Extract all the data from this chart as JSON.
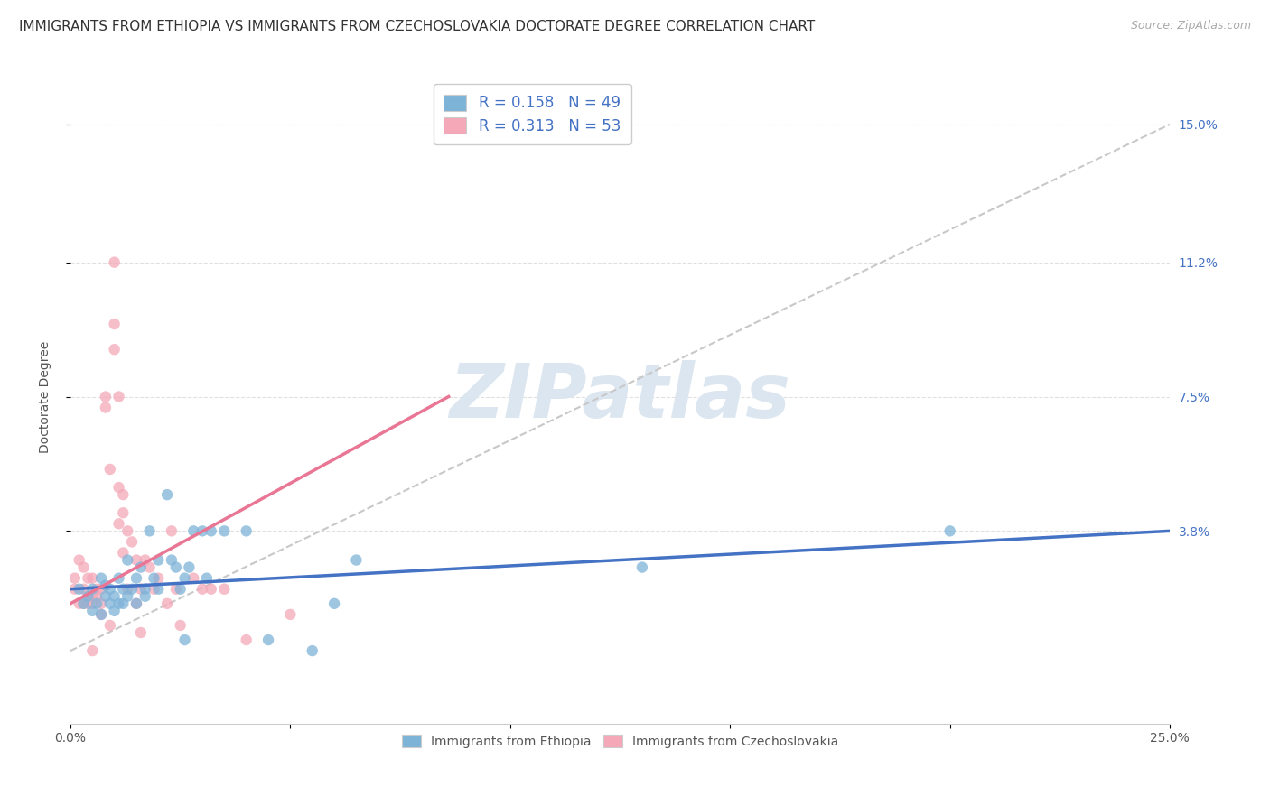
{
  "title": "IMMIGRANTS FROM ETHIOPIA VS IMMIGRANTS FROM CZECHOSLOVAKIA DOCTORATE DEGREE CORRELATION CHART",
  "source": "Source: ZipAtlas.com",
  "ylabel": "Doctorate Degree",
  "ylabel_ticks": [
    "3.8%",
    "7.5%",
    "11.2%",
    "15.0%"
  ],
  "ylabel_tick_values": [
    0.038,
    0.075,
    0.112,
    0.15
  ],
  "xlim": [
    0.0,
    0.25
  ],
  "ylim": [
    -0.015,
    0.165
  ],
  "ethiopia_scatter": [
    [
      0.002,
      0.022
    ],
    [
      0.003,
      0.018
    ],
    [
      0.004,
      0.02
    ],
    [
      0.005,
      0.016
    ],
    [
      0.005,
      0.022
    ],
    [
      0.006,
      0.018
    ],
    [
      0.007,
      0.025
    ],
    [
      0.007,
      0.015
    ],
    [
      0.008,
      0.02
    ],
    [
      0.008,
      0.023
    ],
    [
      0.009,
      0.018
    ],
    [
      0.009,
      0.022
    ],
    [
      0.01,
      0.02
    ],
    [
      0.01,
      0.016
    ],
    [
      0.011,
      0.018
    ],
    [
      0.011,
      0.025
    ],
    [
      0.012,
      0.022
    ],
    [
      0.012,
      0.018
    ],
    [
      0.013,
      0.03
    ],
    [
      0.013,
      0.02
    ],
    [
      0.014,
      0.022
    ],
    [
      0.015,
      0.025
    ],
    [
      0.015,
      0.018
    ],
    [
      0.016,
      0.028
    ],
    [
      0.017,
      0.022
    ],
    [
      0.017,
      0.02
    ],
    [
      0.018,
      0.038
    ],
    [
      0.019,
      0.025
    ],
    [
      0.02,
      0.03
    ],
    [
      0.02,
      0.022
    ],
    [
      0.022,
      0.048
    ],
    [
      0.023,
      0.03
    ],
    [
      0.024,
      0.028
    ],
    [
      0.025,
      0.022
    ],
    [
      0.026,
      0.025
    ],
    [
      0.026,
      0.008
    ],
    [
      0.027,
      0.028
    ],
    [
      0.028,
      0.038
    ],
    [
      0.03,
      0.038
    ],
    [
      0.031,
      0.025
    ],
    [
      0.032,
      0.038
    ],
    [
      0.035,
      0.038
    ],
    [
      0.04,
      0.038
    ],
    [
      0.045,
      0.008
    ],
    [
      0.055,
      0.005
    ],
    [
      0.06,
      0.018
    ],
    [
      0.065,
      0.03
    ],
    [
      0.13,
      0.028
    ],
    [
      0.2,
      0.038
    ]
  ],
  "czechoslovakia_scatter": [
    [
      0.001,
      0.022
    ],
    [
      0.001,
      0.025
    ],
    [
      0.002,
      0.03
    ],
    [
      0.002,
      0.018
    ],
    [
      0.003,
      0.028
    ],
    [
      0.003,
      0.022
    ],
    [
      0.003,
      0.018
    ],
    [
      0.004,
      0.025
    ],
    [
      0.004,
      0.02
    ],
    [
      0.004,
      0.018
    ],
    [
      0.005,
      0.025
    ],
    [
      0.005,
      0.02
    ],
    [
      0.005,
      0.018
    ],
    [
      0.005,
      0.005
    ],
    [
      0.006,
      0.022
    ],
    [
      0.006,
      0.02
    ],
    [
      0.007,
      0.022
    ],
    [
      0.007,
      0.018
    ],
    [
      0.007,
      0.015
    ],
    [
      0.008,
      0.075
    ],
    [
      0.008,
      0.072
    ],
    [
      0.009,
      0.055
    ],
    [
      0.009,
      0.012
    ],
    [
      0.01,
      0.112
    ],
    [
      0.01,
      0.095
    ],
    [
      0.01,
      0.088
    ],
    [
      0.011,
      0.05
    ],
    [
      0.011,
      0.04
    ],
    [
      0.011,
      0.075
    ],
    [
      0.012,
      0.048
    ],
    [
      0.012,
      0.043
    ],
    [
      0.012,
      0.032
    ],
    [
      0.013,
      0.038
    ],
    [
      0.013,
      0.022
    ],
    [
      0.014,
      0.035
    ],
    [
      0.015,
      0.03
    ],
    [
      0.015,
      0.018
    ],
    [
      0.016,
      0.022
    ],
    [
      0.016,
      0.01
    ],
    [
      0.017,
      0.03
    ],
    [
      0.018,
      0.028
    ],
    [
      0.019,
      0.022
    ],
    [
      0.02,
      0.025
    ],
    [
      0.022,
      0.018
    ],
    [
      0.023,
      0.038
    ],
    [
      0.024,
      0.022
    ],
    [
      0.025,
      0.012
    ],
    [
      0.028,
      0.025
    ],
    [
      0.03,
      0.022
    ],
    [
      0.032,
      0.022
    ],
    [
      0.035,
      0.022
    ],
    [
      0.04,
      0.008
    ],
    [
      0.05,
      0.015
    ]
  ],
  "ethiopia_line_x": [
    0.0,
    0.25
  ],
  "ethiopia_line_y": [
    0.022,
    0.038
  ],
  "czechoslovakia_line_x": [
    0.0,
    0.086
  ],
  "czechoslovakia_line_y": [
    0.018,
    0.075
  ],
  "trend_line_x": [
    0.0,
    0.25
  ],
  "trend_line_y": [
    0.005,
    0.15
  ],
  "ethiopia_line_color": "#4472C4",
  "czechoslovakia_line_color": "#E87694",
  "trend_line_color": "#c8c8c8",
  "scatter_ethiopia_color": "#7EB3D8",
  "scatter_czechoslovakia_color": "#F4A8B8",
  "scatter_alpha": 0.75,
  "scatter_size": 80,
  "background_color": "#ffffff",
  "grid_color": "#dddddd",
  "title_fontsize": 11,
  "axis_label_fontsize": 10,
  "tick_fontsize": 10,
  "watermark_text": "ZIPatlas",
  "watermark_color": "#dce6f0",
  "watermark_fontsize": 60,
  "r_eth": "0.158",
  "n_eth": "49",
  "r_czk": "0.313",
  "n_czk": "53"
}
